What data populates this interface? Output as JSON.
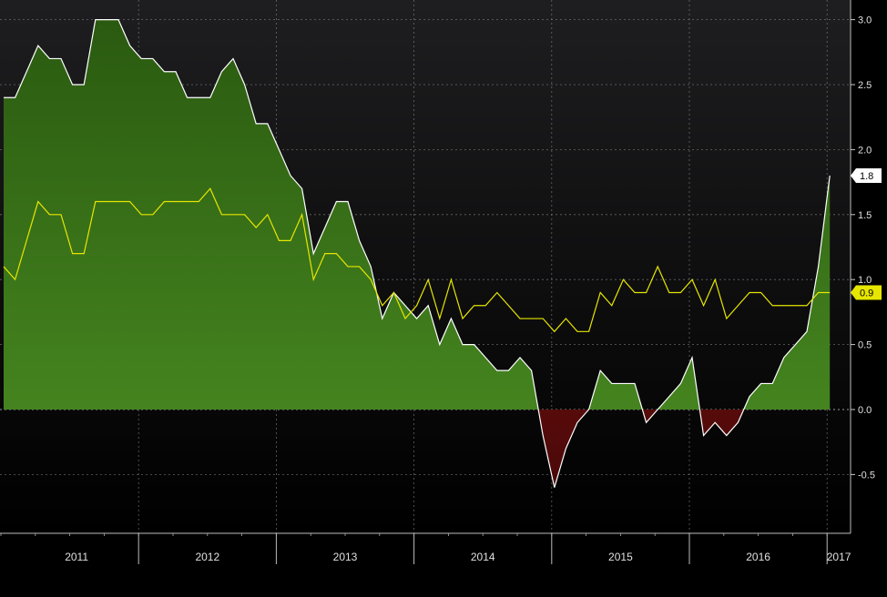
{
  "chart_data": {
    "type": "area",
    "title": "",
    "xlabel": "",
    "ylabel": "",
    "ylim": [
      -0.95,
      3.2
    ],
    "yticks": [
      "3.0",
      "2.5",
      "2.0",
      "1.5",
      "1.0",
      "0.5",
      "0.0",
      "-0.5"
    ],
    "ytick_values": [
      3.0,
      2.5,
      2.0,
      1.5,
      1.0,
      0.5,
      0.0,
      -0.5
    ],
    "x_start": "2011-01",
    "year_labels": [
      "2011",
      "2012",
      "2013",
      "2014",
      "2015",
      "2016",
      "2017"
    ],
    "grid": true,
    "colors": {
      "positive_fill": "#3f7d1c",
      "negative_fill": "#8a1515",
      "headline_line": "#ffffff",
      "core_line": "#e6e600",
      "background_top": "#1e1e20",
      "background_bottom": "#000000"
    },
    "last_value_badges": [
      "1.8",
      "0.9"
    ],
    "series": [
      {
        "values": [
          2.4,
          2.4,
          2.6,
          2.8,
          2.7,
          2.7,
          2.5,
          2.5,
          3.0,
          3.0,
          3.0,
          2.8,
          2.7,
          2.7,
          2.6,
          2.6,
          2.4,
          2.4,
          2.4,
          2.6,
          2.7,
          2.5,
          2.2,
          2.2,
          2.0,
          1.8,
          1.7,
          1.2,
          1.4,
          1.6,
          1.6,
          1.3,
          1.1,
          0.7,
          0.9,
          0.8,
          0.7,
          0.8,
          0.5,
          0.7,
          0.5,
          0.5,
          0.4,
          0.3,
          0.3,
          0.4,
          0.3,
          -0.2,
          -0.6,
          -0.3,
          -0.1,
          0.0,
          0.3,
          0.2,
          0.2,
          0.2,
          -0.1,
          0.0,
          0.1,
          0.2,
          0.4,
          -0.2,
          -0.1,
          -0.2,
          -0.1,
          0.1,
          0.2,
          0.2,
          0.4,
          0.5,
          0.6,
          1.1,
          1.8
        ]
      },
      {
        "values": [
          1.1,
          1.0,
          1.3,
          1.6,
          1.5,
          1.5,
          1.2,
          1.2,
          1.6,
          1.6,
          1.6,
          1.6,
          1.5,
          1.5,
          1.6,
          1.6,
          1.6,
          1.6,
          1.7,
          1.5,
          1.5,
          1.5,
          1.4,
          1.5,
          1.3,
          1.3,
          1.5,
          1.0,
          1.2,
          1.2,
          1.1,
          1.1,
          1.0,
          0.8,
          0.9,
          0.7,
          0.8,
          1.0,
          0.7,
          1.0,
          0.7,
          0.8,
          0.8,
          0.9,
          0.8,
          0.7,
          0.7,
          0.7,
          0.6,
          0.7,
          0.6,
          0.6,
          0.9,
          0.8,
          1.0,
          0.9,
          0.9,
          1.1,
          0.9,
          0.9,
          1.0,
          0.8,
          1.0,
          0.7,
          0.8,
          0.9,
          0.9,
          0.8,
          0.8,
          0.8,
          0.8,
          0.9,
          0.9
        ]
      }
    ]
  }
}
